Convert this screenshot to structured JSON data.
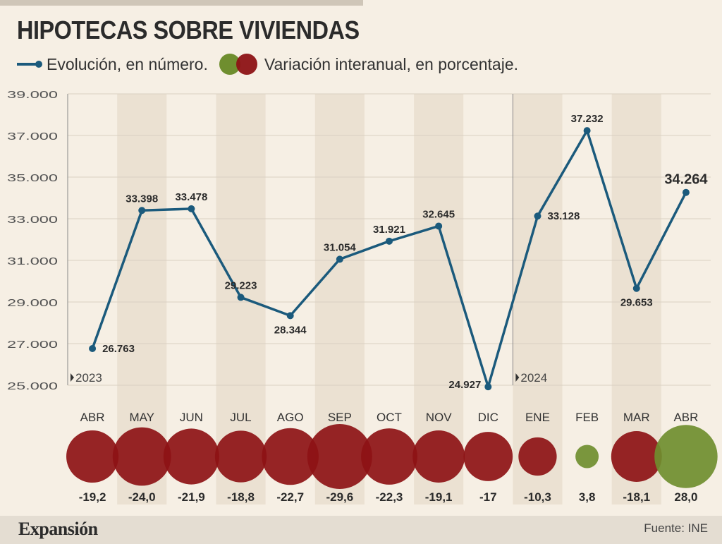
{
  "header": {
    "title": "HIPOTECAS SOBRE VIVIENDAS",
    "legend_line_label": "Evolución, en número.",
    "legend_circle_label": "Variación interanual, en porcentaje."
  },
  "footer": {
    "brand": "Expansión",
    "source": "Fuente: INE"
  },
  "colors": {
    "line": "#1b5a7c",
    "negative": "#8d1215",
    "positive": "#6f8e2f",
    "band": "#ebe1d2",
    "background": "#f6efe4"
  },
  "chart_data": {
    "type": "line",
    "title": "HIPOTECAS SOBRE VIVIENDAS",
    "categories": [
      "ABR",
      "MAY",
      "JUN",
      "JUL",
      "AGO",
      "SEP",
      "OCT",
      "NOV",
      "DIC",
      "ENE",
      "FEB",
      "MAR",
      "ABR"
    ],
    "year_markers": [
      {
        "index": 0,
        "label": "2023"
      },
      {
        "index": 9,
        "label": "2024"
      }
    ],
    "ylim": [
      25000,
      39000
    ],
    "yticks": [
      25000,
      27000,
      29000,
      31000,
      33000,
      35000,
      37000,
      39000
    ],
    "ytick_labels": [
      "25.000",
      "27.000",
      "29.000",
      "31.000",
      "33.000",
      "35.000",
      "37.000",
      "39.000"
    ],
    "grid": true,
    "series": [
      {
        "name": "Evolución, en número.",
        "values": [
          26763,
          33398,
          33478,
          29223,
          28344,
          31054,
          31921,
          32645,
          24927,
          33128,
          37232,
          29653,
          34264
        ],
        "labels": [
          "26.763",
          "33.398",
          "33.478",
          "29.223",
          "28.344",
          "31.054",
          "31.921",
          "32.645",
          "24.927",
          "33.128",
          "37.232",
          "29.653",
          "34.264"
        ]
      },
      {
        "name": "Variación interanual, en porcentaje.",
        "type": "bubble",
        "values": [
          -19.2,
          -24.0,
          -21.9,
          -18.8,
          -22.7,
          -29.6,
          -22.3,
          -19.1,
          -17,
          -10.3,
          3.8,
          -18.1,
          28.0
        ],
        "labels": [
          "-19,2",
          "-24,0",
          "-21,9",
          "-18,8",
          "-22,7",
          "-29,6",
          "-22,3",
          "-19,1",
          "-17",
          "-10,3",
          "3,8",
          "-18,1",
          "28,0"
        ]
      }
    ]
  }
}
